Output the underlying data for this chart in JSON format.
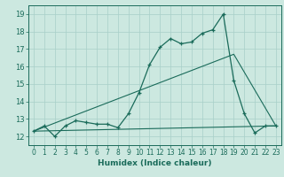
{
  "title": "",
  "xlabel": "Humidex (Indice chaleur)",
  "bg_color": "#cce8e0",
  "line_color": "#1a6b5a",
  "grid_color": "#a8cfc8",
  "xlim": [
    -0.5,
    23.5
  ],
  "ylim": [
    11.5,
    19.5
  ],
  "xticks": [
    0,
    1,
    2,
    3,
    4,
    5,
    6,
    7,
    8,
    9,
    10,
    11,
    12,
    13,
    14,
    15,
    16,
    17,
    18,
    19,
    20,
    21,
    22,
    23
  ],
  "yticks": [
    12,
    13,
    14,
    15,
    16,
    17,
    18,
    19
  ],
  "main_x": [
    0,
    1,
    2,
    3,
    4,
    5,
    6,
    7,
    8,
    9,
    10,
    11,
    12,
    13,
    14,
    15,
    16,
    17,
    18,
    19,
    20,
    21,
    22,
    23
  ],
  "main_y": [
    12.3,
    12.6,
    12.0,
    12.6,
    12.9,
    12.8,
    12.7,
    12.7,
    12.5,
    13.3,
    14.5,
    16.1,
    17.1,
    17.6,
    17.3,
    17.4,
    17.9,
    18.1,
    19.0,
    15.2,
    13.3,
    12.2,
    12.6,
    12.6
  ],
  "flat_line_x": [
    0,
    23
  ],
  "flat_line_y": [
    12.3,
    12.6
  ],
  "diag_line_x": [
    0,
    19,
    23
  ],
  "diag_line_y": [
    12.3,
    16.7,
    12.6
  ]
}
